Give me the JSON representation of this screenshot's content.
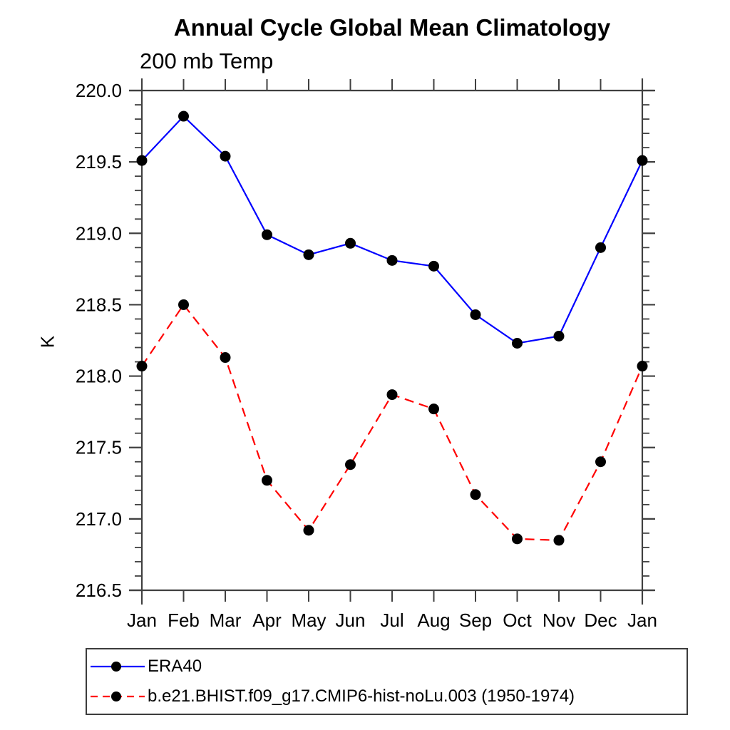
{
  "chart_data": {
    "type": "line",
    "title": "Annual Cycle Global Mean Climatology",
    "subtitle": "200 mb Temp",
    "ylabel": "K",
    "categories": [
      "Jan",
      "Feb",
      "Mar",
      "Apr",
      "May",
      "Jun",
      "Jul",
      "Aug",
      "Sep",
      "Oct",
      "Nov",
      "Dec",
      "Jan"
    ],
    "ylim": [
      216.5,
      220.0
    ],
    "y_major_step": 0.5,
    "y_minor_step": 0.1,
    "y_tick_labels": [
      "216.5",
      "217.0",
      "217.5",
      "218.0",
      "218.5",
      "219.0",
      "219.5",
      "220.0"
    ],
    "grid": false,
    "legend_position": "bottom-left-box",
    "axis_color": "#404040",
    "marker": {
      "shape": "circle",
      "color": "#000000",
      "radius": 7.5
    },
    "series": [
      {
        "name": "ERA40",
        "color": "#0000ff",
        "line_style": "solid",
        "values": [
          219.51,
          219.82,
          219.54,
          218.99,
          218.85,
          218.93,
          218.81,
          218.77,
          218.43,
          218.23,
          218.28,
          218.9,
          219.51
        ]
      },
      {
        "name": "b.e21.BHIST.f09_g17.CMIP6-hist-noLu.003 (1950-1974)",
        "color": "#ff0000",
        "line_style": "dashed",
        "values": [
          218.07,
          218.5,
          218.13,
          217.27,
          216.92,
          217.38,
          217.87,
          217.77,
          217.17,
          216.86,
          216.85,
          217.4,
          218.07
        ]
      }
    ]
  }
}
